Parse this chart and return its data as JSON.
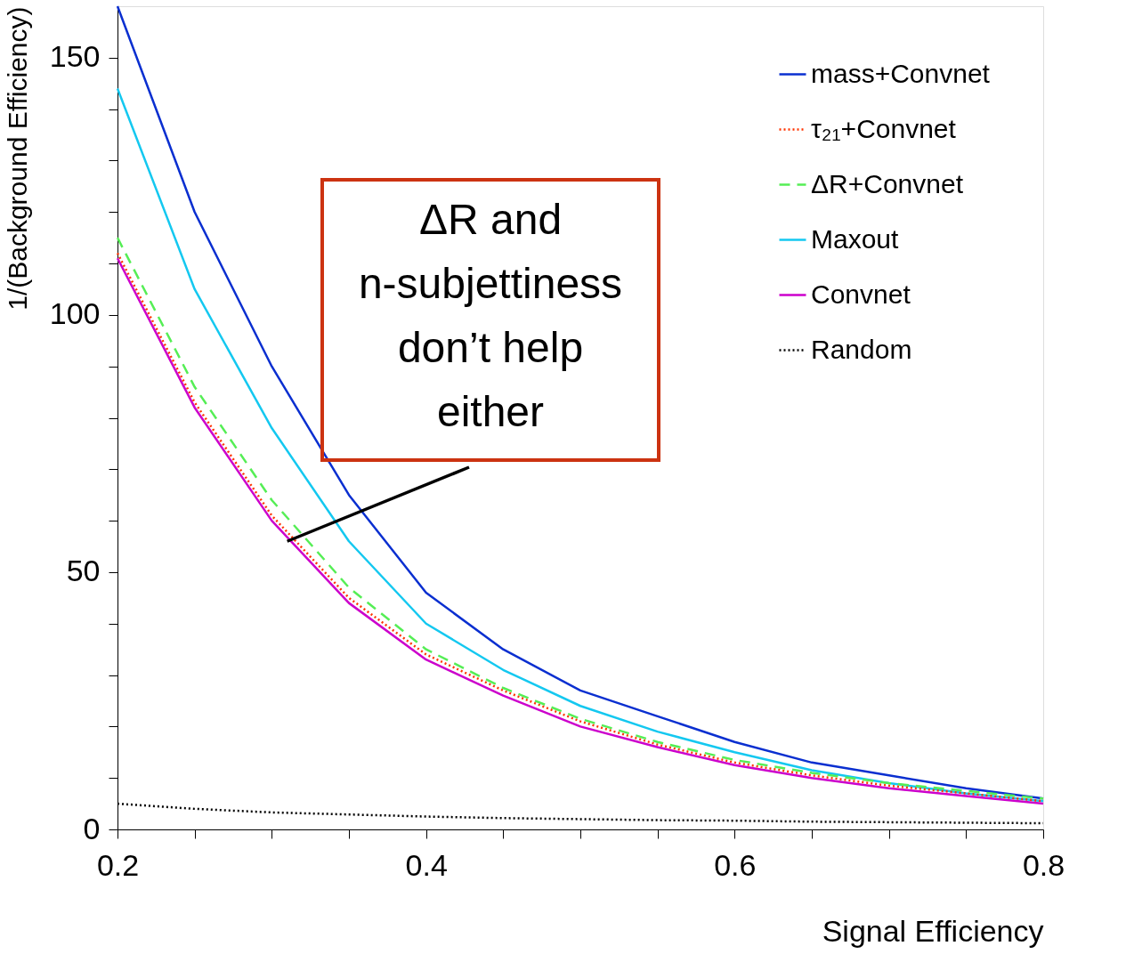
{
  "chart_data": {
    "type": "line",
    "xlabel": "Signal Efficiency",
    "ylabel": "1/(Background Efficiency)",
    "x": [
      0.2,
      0.25,
      0.3,
      0.35,
      0.4,
      0.45,
      0.5,
      0.55,
      0.6,
      0.65,
      0.7,
      0.75,
      0.8
    ],
    "series": [
      {
        "name": "mass+Convnet",
        "color": "#0a2fd0",
        "line_style": "solid",
        "values": [
          160,
          120,
          90,
          65,
          46,
          35,
          27,
          22,
          17,
          13,
          10.5,
          8,
          6
        ]
      },
      {
        "name": "τ₂₁+Convnet",
        "color": "#ff3300",
        "line_style": "dotted",
        "values": [
          112,
          83,
          61,
          45,
          34,
          27,
          21,
          16.5,
          13,
          10.5,
          8.5,
          7,
          5.5
        ]
      },
      {
        "name": "ΔR+Convnet",
        "color": "#55ee55",
        "line_style": "dashed",
        "values": [
          115,
          86,
          64,
          47,
          35,
          27.5,
          21.5,
          17,
          13.5,
          11,
          9,
          7.5,
          6
        ]
      },
      {
        "name": "Maxout",
        "color": "#14c8f0",
        "line_style": "solid",
        "values": [
          144,
          105,
          78,
          56,
          40,
          31,
          24,
          19,
          15,
          11.5,
          9,
          7,
          5.5
        ]
      },
      {
        "name": "Convnet",
        "color": "#cc00cc",
        "line_style": "solid",
        "values": [
          111,
          82,
          60,
          44,
          33,
          26,
          20,
          16,
          12.5,
          10,
          8,
          6.5,
          5
        ]
      },
      {
        "name": "Random",
        "color": "#000000",
        "line_style": "dotted",
        "values": [
          5,
          4,
          3.3,
          2.9,
          2.5,
          2.2,
          2,
          1.8,
          1.7,
          1.5,
          1.4,
          1.3,
          1.2
        ]
      }
    ],
    "xlim": [
      0.2,
      0.8
    ],
    "ylim": [
      0,
      160
    ],
    "xticks": [
      0.2,
      {
        "value": 0.25,
        "label": null
      },
      {
        "value": 0.3,
        "label": null
      },
      {
        "value": 0.35,
        "label": null
      },
      0.4,
      {
        "value": 0.45,
        "label": null
      },
      {
        "value": 0.5,
        "label": null
      },
      {
        "value": 0.55,
        "label": null
      },
      0.6,
      {
        "value": 0.65,
        "label": null
      },
      {
        "value": 0.7,
        "label": null
      },
      {
        "value": 0.75,
        "label": null
      },
      0.8
    ],
    "yticks": [
      0,
      {
        "value": 10,
        "label": null
      },
      {
        "value": 20,
        "label": null
      },
      {
        "value": 30,
        "label": null
      },
      {
        "value": 40,
        "label": null
      },
      50,
      {
        "value": 60,
        "label": null
      },
      {
        "value": 70,
        "label": null
      },
      {
        "value": 80,
        "label": null
      },
      {
        "value": 90,
        "label": null
      },
      100,
      {
        "value": 110,
        "label": null
      },
      {
        "value": 120,
        "label": null
      },
      {
        "value": 130,
        "label": null
      },
      {
        "value": 140,
        "label": null
      },
      150
    ],
    "annotations": [
      {
        "text": "ΔR and\nn-subjettiness\ndon’t help\neither",
        "x": 0.31,
        "y": 56
      }
    ],
    "grid": false,
    "legend": "top right",
    "marker": "none"
  }
}
